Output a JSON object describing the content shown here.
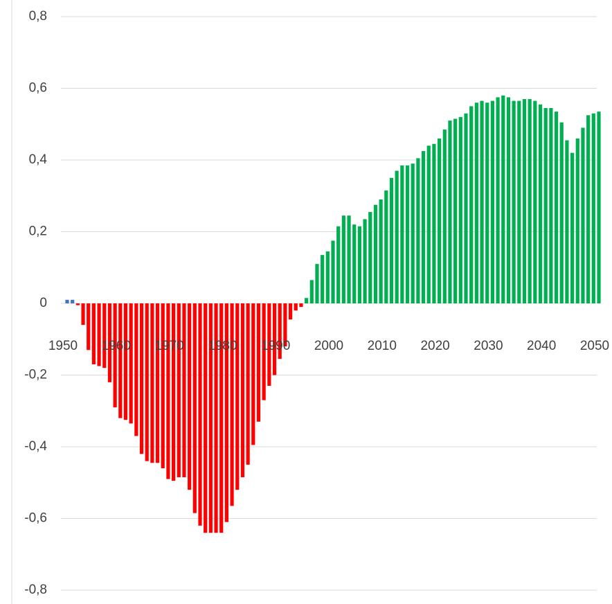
{
  "chart_data": {
    "type": "bar",
    "categories": [
      "1950",
      null,
      null,
      null,
      null,
      null,
      null,
      null,
      null,
      null,
      "1960",
      null,
      null,
      null,
      null,
      null,
      null,
      null,
      null,
      null,
      "1970",
      null,
      null,
      null,
      null,
      null,
      null,
      null,
      null,
      null,
      "1980",
      null,
      null,
      null,
      null,
      null,
      null,
      null,
      null,
      null,
      "1990",
      null,
      null,
      null,
      null,
      null,
      null,
      null,
      null,
      null,
      "2000",
      null,
      null,
      null,
      null,
      null,
      null,
      null,
      null,
      null,
      "2010",
      null,
      null,
      null,
      null,
      null,
      null,
      null,
      null,
      null,
      "2020",
      null,
      null,
      null,
      null,
      null,
      null,
      null,
      null,
      null,
      "2030",
      null,
      null,
      null,
      null,
      null,
      null,
      null,
      null,
      null,
      "2040",
      null,
      null,
      null,
      null,
      null,
      null,
      null,
      null,
      null,
      "2050"
    ],
    "values": [
      0.01,
      0.01,
      -0.005,
      -0.06,
      -0.13,
      -0.17,
      -0.175,
      -0.18,
      -0.22,
      -0.29,
      -0.32,
      -0.325,
      -0.335,
      -0.37,
      -0.42,
      -0.44,
      -0.445,
      -0.445,
      -0.46,
      -0.49,
      -0.495,
      -0.485,
      -0.485,
      -0.52,
      -0.585,
      -0.62,
      -0.64,
      -0.64,
      -0.64,
      -0.64,
      -0.61,
      -0.565,
      -0.52,
      -0.485,
      -0.45,
      -0.395,
      -0.33,
      -0.27,
      -0.23,
      -0.2,
      -0.155,
      -0.12,
      -0.045,
      -0.02,
      -0.01,
      0.015,
      0.065,
      0.11,
      0.135,
      0.145,
      0.175,
      0.215,
      0.245,
      0.245,
      0.22,
      0.215,
      0.235,
      0.255,
      0.275,
      0.29,
      0.315,
      0.35,
      0.37,
      0.385,
      0.385,
      0.39,
      0.405,
      0.425,
      0.44,
      0.445,
      0.46,
      0.485,
      0.51,
      0.515,
      0.52,
      0.53,
      0.55,
      0.56,
      0.565,
      0.56,
      0.565,
      0.575,
      0.58,
      0.575,
      0.565,
      0.565,
      0.57,
      0.57,
      0.565,
      0.555,
      0.545,
      0.545,
      0.535,
      0.505,
      0.455,
      0.42,
      0.46,
      0.49,
      0.525,
      0.53,
      0.535
    ],
    "colors": [
      "#4472c4",
      "#4472c4",
      "#ff0000",
      "#ff0000",
      "#ff0000",
      "#ff0000",
      "#ff0000",
      "#ff0000",
      "#ff0000",
      "#ff0000",
      "#ff0000",
      "#ff0000",
      "#ff0000",
      "#ff0000",
      "#ff0000",
      "#ff0000",
      "#ff0000",
      "#ff0000",
      "#ff0000",
      "#ff0000",
      "#ff0000",
      "#ff0000",
      "#ff0000",
      "#ff0000",
      "#ff0000",
      "#ff0000",
      "#ff0000",
      "#ff0000",
      "#ff0000",
      "#ff0000",
      "#ff0000",
      "#ff0000",
      "#ff0000",
      "#ff0000",
      "#ff0000",
      "#ff0000",
      "#ff0000",
      "#ff0000",
      "#ff0000",
      "#ff0000",
      "#ff0000",
      "#ff0000",
      "#ff0000",
      "#ff0000",
      "#ff0000",
      "#00b050",
      "#00b050",
      "#00b050",
      "#00b050",
      "#00b050",
      "#00b050",
      "#00b050",
      "#00b050",
      "#00b050",
      "#00b050",
      "#00b050",
      "#00b050",
      "#00b050",
      "#00b050",
      "#00b050",
      "#00b050",
      "#00b050",
      "#00b050",
      "#00b050",
      "#00b050",
      "#00b050",
      "#00b050",
      "#00b050",
      "#00b050",
      "#00b050",
      "#00b050",
      "#00b050",
      "#00b050",
      "#00b050",
      "#00b050",
      "#00b050",
      "#00b050",
      "#00b050",
      "#00b050",
      "#00b050",
      "#00b050",
      "#00b050",
      "#00b050",
      "#00b050",
      "#00b050",
      "#00b050",
      "#00b050",
      "#00b050",
      "#00b050",
      "#00b050",
      "#00b050",
      "#00b050",
      "#00b050",
      "#00b050",
      "#00b050",
      "#00b050",
      "#00b050",
      "#00b050",
      "#00b050",
      "#00b050",
      "#00b050"
    ],
    "ylim": [
      -0.8,
      0.8
    ],
    "yticks": [
      {
        "value": -0.8,
        "label": "-0,8"
      },
      {
        "value": -0.6,
        "label": "-0,6"
      },
      {
        "value": -0.4,
        "label": "-0,4"
      },
      {
        "value": -0.2,
        "label": "-0,2"
      },
      0,
      {
        "value": 0.2,
        "label": "0,2"
      },
      {
        "value": 0.4,
        "label": "0,4"
      },
      {
        "value": 0.6,
        "label": "0,6"
      },
      {
        "value": 0.8,
        "label": "0,8"
      }
    ],
    "grid": true
  }
}
